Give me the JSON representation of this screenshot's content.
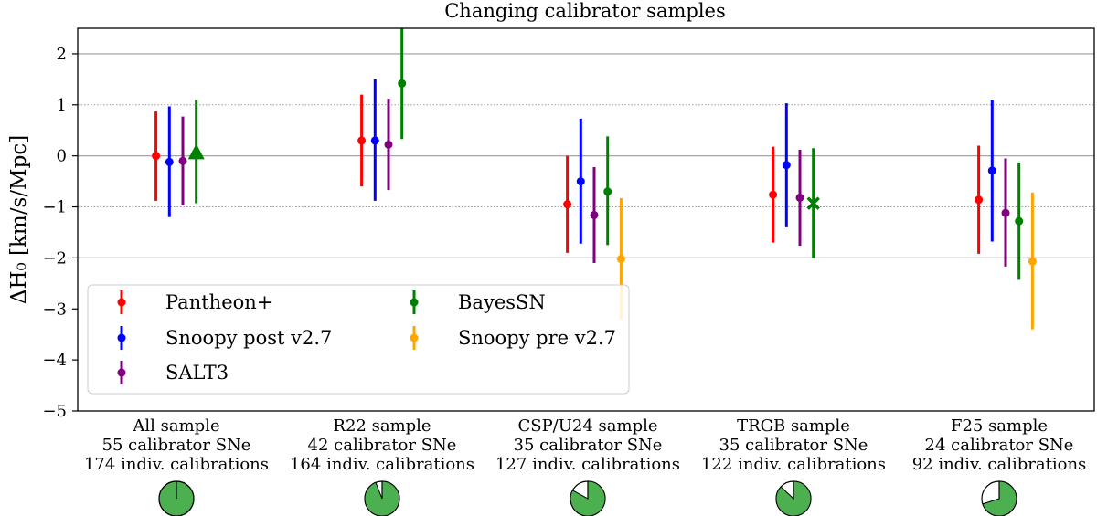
{
  "chart_data": {
    "type": "errorbar",
    "title": "Changing calibrator samples",
    "ylabel": "ΔH₀ [km/s/Mpc]",
    "ylim": [
      -5,
      2.5
    ],
    "yticks": [
      -5,
      -4,
      -3,
      -2,
      -1,
      0,
      1,
      2
    ],
    "ytick_labels": [
      "−5",
      "−4",
      "−3",
      "−2",
      "−1",
      "0",
      "1",
      "2"
    ],
    "hlines_solid": [
      -2,
      0,
      2
    ],
    "hlines_dotted": [
      -1,
      1
    ],
    "categories": [
      {
        "name": "All sample",
        "line2": "55 calibrator SNe",
        "line3": "174 indiv. calibrations",
        "pie_white_fraction": 0.0
      },
      {
        "name": "R22 sample",
        "line2": "42 calibrator SNe",
        "line3": "164 indiv. calibrations",
        "pie_white_fraction": 0.06
      },
      {
        "name": "CSP/U24 sample",
        "line2": "35 calibrator SNe",
        "line3": "127 indiv. calibrations",
        "pie_white_fraction": 0.17
      },
      {
        "name": "TRGB sample",
        "line2": "35 calibrator SNe",
        "line3": "122 indiv. calibrations",
        "pie_white_fraction": 0.13
      },
      {
        "name": "F25 sample",
        "line2": "24 calibrator SNe",
        "line3": "92 indiv. calibrations",
        "pie_white_fraction": 0.3
      }
    ],
    "series": [
      {
        "name": "Pantheon+",
        "color": "#ff0000",
        "offset": -0.32,
        "points": [
          {
            "y": 0.0,
            "lo": -0.88,
            "hi": 0.87
          },
          {
            "y": 0.3,
            "lo": -0.6,
            "hi": 1.2
          },
          {
            "y": -0.95,
            "lo": -1.9,
            "hi": 0.0
          },
          {
            "y": -0.76,
            "lo": -1.7,
            "hi": 0.18
          },
          {
            "y": -0.86,
            "lo": -1.92,
            "hi": 0.2
          }
        ]
      },
      {
        "name": "Snoopy post v2.7",
        "color": "#0000ff",
        "offset": -0.11,
        "points": [
          {
            "y": -0.12,
            "lo": -1.2,
            "hi": 0.97
          },
          {
            "y": 0.3,
            "lo": -0.88,
            "hi": 1.5
          },
          {
            "y": -0.5,
            "lo": -1.72,
            "hi": 0.73
          },
          {
            "y": -0.18,
            "lo": -1.4,
            "hi": 1.03
          },
          {
            "y": -0.29,
            "lo": -1.68,
            "hi": 1.09
          }
        ]
      },
      {
        "name": "SALT3",
        "color": "#800080",
        "offset": 0.1,
        "points": [
          {
            "y": -0.1,
            "lo": -0.97,
            "hi": 0.77
          },
          {
            "y": 0.22,
            "lo": -0.67,
            "hi": 1.12
          },
          {
            "y": -1.16,
            "lo": -2.1,
            "hi": -0.22
          },
          {
            "y": -0.82,
            "lo": -1.76,
            "hi": 0.12
          },
          {
            "y": -1.12,
            "lo": -2.17,
            "hi": -0.05
          }
        ]
      },
      {
        "name": "BayesSN",
        "color": "#008000",
        "offset": 0.31,
        "points": [
          {
            "y": 0.06,
            "lo": -0.93,
            "hi": 1.1,
            "marker": "triangle"
          },
          {
            "y": 1.42,
            "lo": 0.33,
            "hi": 2.5
          },
          {
            "y": -0.7,
            "lo": -1.75,
            "hi": 0.38
          },
          {
            "y": -0.93,
            "lo": -2.01,
            "hi": 0.15,
            "marker": "x"
          },
          {
            "y": -1.28,
            "lo": -2.43,
            "hi": -0.13
          }
        ]
      },
      {
        "name": "Snoopy pre v2.7",
        "color": "#ffa500",
        "offset": 0.52,
        "points": [
          null,
          null,
          {
            "y": -2.02,
            "lo": -3.2,
            "hi": -0.83
          },
          null,
          {
            "y": -2.07,
            "lo": -3.4,
            "hi": -0.72
          }
        ]
      }
    ],
    "legend": {
      "placement": "lower-left",
      "columns": 2
    }
  }
}
